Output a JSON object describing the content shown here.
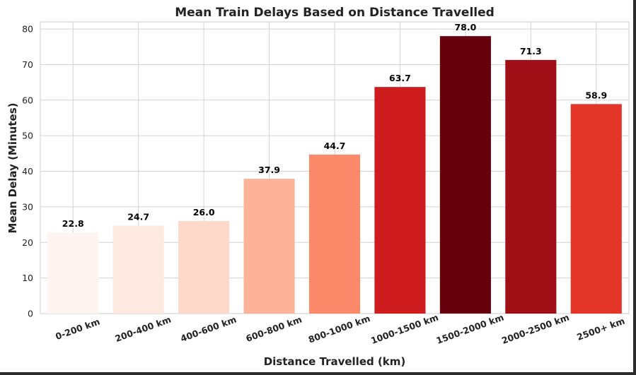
{
  "chart_data": {
    "type": "bar",
    "title": "Mean Train Delays Based on Distance Travelled",
    "xlabel": "Distance Travelled (km)",
    "ylabel": "Mean Delay (Minutes)",
    "categories": [
      "0-200 km",
      "200-400 km",
      "400-600 km",
      "600-800 km",
      "800-1000 km",
      "1000-1500 km",
      "1500-2000 km",
      "2000-2500 km",
      "2500+ km"
    ],
    "values": [
      22.8,
      24.7,
      26.0,
      37.9,
      44.7,
      63.7,
      78.0,
      71.3,
      58.9
    ],
    "data_labels": [
      "22.8",
      "24.7",
      "26.0",
      "37.9",
      "44.7",
      "63.7",
      "78.0",
      "71.3",
      "58.9"
    ],
    "colors": [
      "#fff4f0",
      "#fee9e0",
      "#fdd9cc",
      "#fcb398",
      "#fc8a6a",
      "#cf1c1f",
      "#67000d",
      "#a00f16",
      "#e33629"
    ],
    "ylim": [
      0,
      82
    ],
    "yticks": [
      0,
      10,
      20,
      30,
      40,
      50,
      60,
      70,
      80
    ],
    "grid": true,
    "legend": "none"
  }
}
